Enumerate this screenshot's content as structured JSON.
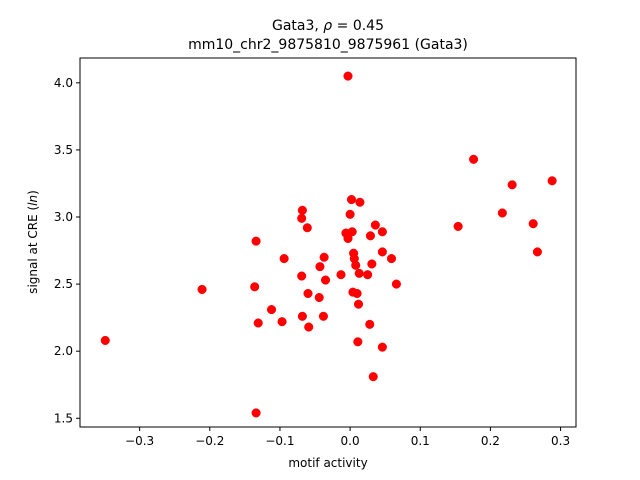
{
  "chart_data": {
    "type": "scatter",
    "title_line1_prefix": "Gata3, ",
    "title_rho_symbol": "ρ",
    "title_rho_value": " = 0.45",
    "title_line2": "mm10_chr2_9875810_9875961 (Gata3)",
    "xlabel": "motif activity",
    "ylabel_prefix": "signal at CRE (",
    "ylabel_italic": "ln",
    "ylabel_suffix": ")",
    "xlim": [
      -0.385,
      0.322
    ],
    "ylim": [
      1.435,
      4.185
    ],
    "x_ticks": [
      {
        "value": -0.3,
        "label": "−0.3"
      },
      {
        "value": -0.2,
        "label": "−0.2"
      },
      {
        "value": -0.1,
        "label": "−0.1"
      },
      {
        "value": 0.0,
        "label": "0.0"
      },
      {
        "value": 0.1,
        "label": "0.1"
      },
      {
        "value": 0.2,
        "label": "0.2"
      },
      {
        "value": 0.3,
        "label": "0.3"
      }
    ],
    "y_ticks": [
      {
        "value": 1.5,
        "label": "1.5"
      },
      {
        "value": 2.0,
        "label": "2.0"
      },
      {
        "value": 2.5,
        "label": "2.5"
      },
      {
        "value": 3.0,
        "label": "3.0"
      },
      {
        "value": 3.5,
        "label": "3.5"
      },
      {
        "value": 4.0,
        "label": "4.0"
      }
    ],
    "grid": false,
    "legend": "none",
    "marker_color": "#ff0000",
    "points": [
      {
        "x": -0.349,
        "y": 2.08
      },
      {
        "x": -0.211,
        "y": 2.46
      },
      {
        "x": -0.134,
        "y": 2.82
      },
      {
        "x": -0.136,
        "y": 2.48
      },
      {
        "x": -0.131,
        "y": 2.21
      },
      {
        "x": -0.134,
        "y": 1.54
      },
      {
        "x": -0.112,
        "y": 2.31
      },
      {
        "x": -0.097,
        "y": 2.22
      },
      {
        "x": -0.094,
        "y": 2.69
      },
      {
        "x": -0.068,
        "y": 3.05
      },
      {
        "x": -0.069,
        "y": 2.99
      },
      {
        "x": -0.061,
        "y": 2.92
      },
      {
        "x": -0.069,
        "y": 2.56
      },
      {
        "x": -0.06,
        "y": 2.43
      },
      {
        "x": -0.068,
        "y": 2.26
      },
      {
        "x": -0.059,
        "y": 2.18
      },
      {
        "x": -0.043,
        "y": 2.63
      },
      {
        "x": -0.044,
        "y": 2.4
      },
      {
        "x": -0.037,
        "y": 2.7
      },
      {
        "x": -0.035,
        "y": 2.53
      },
      {
        "x": -0.038,
        "y": 2.26
      },
      {
        "x": -0.013,
        "y": 2.57
      },
      {
        "x": -0.003,
        "y": 4.05
      },
      {
        "x": -0.006,
        "y": 2.88
      },
      {
        "x": -0.003,
        "y": 2.84
      },
      {
        "x": 0.002,
        "y": 3.13
      },
      {
        "x": 0.0,
        "y": 3.02
      },
      {
        "x": 0.003,
        "y": 2.89
      },
      {
        "x": 0.005,
        "y": 2.73
      },
      {
        "x": 0.006,
        "y": 2.69
      },
      {
        "x": 0.008,
        "y": 2.64
      },
      {
        "x": 0.004,
        "y": 2.44
      },
      {
        "x": 0.01,
        "y": 2.43
      },
      {
        "x": 0.012,
        "y": 2.35
      },
      {
        "x": 0.011,
        "y": 2.07
      },
      {
        "x": 0.014,
        "y": 3.11
      },
      {
        "x": 0.013,
        "y": 2.58
      },
      {
        "x": 0.025,
        "y": 2.57
      },
      {
        "x": 0.029,
        "y": 2.86
      },
      {
        "x": 0.031,
        "y": 2.65
      },
      {
        "x": 0.028,
        "y": 2.2
      },
      {
        "x": 0.033,
        "y": 1.81
      },
      {
        "x": 0.036,
        "y": 2.94
      },
      {
        "x": 0.046,
        "y": 2.89
      },
      {
        "x": 0.046,
        "y": 2.74
      },
      {
        "x": 0.046,
        "y": 2.03
      },
      {
        "x": 0.059,
        "y": 2.69
      },
      {
        "x": 0.066,
        "y": 2.5
      },
      {
        "x": 0.154,
        "y": 2.93
      },
      {
        "x": 0.176,
        "y": 3.43
      },
      {
        "x": 0.217,
        "y": 3.03
      },
      {
        "x": 0.231,
        "y": 3.24
      },
      {
        "x": 0.261,
        "y": 2.95
      },
      {
        "x": 0.267,
        "y": 2.74
      },
      {
        "x": 0.288,
        "y": 3.27
      }
    ]
  }
}
